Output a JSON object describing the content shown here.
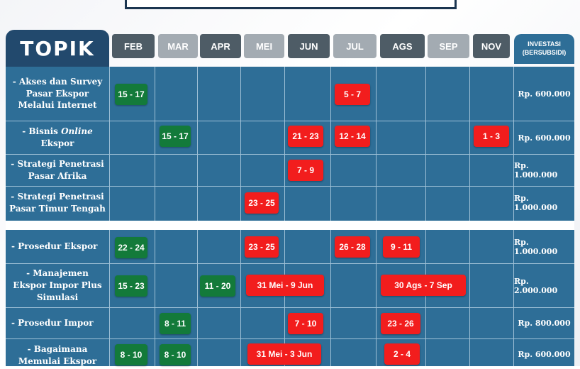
{
  "header": {
    "topik_label": "TOPIK",
    "investasi_line1": "INVESTASI",
    "investasi_line2": "(BERSUBSIDI)",
    "months": [
      {
        "label": "FEB",
        "color": "#4e5c66"
      },
      {
        "label": "MAR",
        "color": "#a3abb2"
      },
      {
        "label": "APR",
        "color": "#4e5c66"
      },
      {
        "label": "MEI",
        "color": "#a3abb2"
      },
      {
        "label": "JUN",
        "color": "#4e5c66"
      },
      {
        "label": "JUL",
        "color": "#a3abb2"
      },
      {
        "label": "AGS",
        "color": "#4e5c66"
      },
      {
        "label": "SEP",
        "color": "#a3abb2"
      },
      {
        "label": "NOV",
        "color": "#4e5c66"
      }
    ]
  },
  "colors": {
    "grid": "#2e6e97",
    "topik": "#22496d",
    "green": "#137a3a",
    "red": "#f21d1d"
  },
  "rows": [
    {
      "topic_lines": [
        "- Akses dan Survey",
        "Pasar Ekspor",
        "Melalui Internet"
      ],
      "price": "Rp. 600.000",
      "dates": [
        {
          "text": "15 - 17",
          "color": "green"
        },
        {
          "text": "5 - 7",
          "color": "red"
        }
      ]
    },
    {
      "topic_prefix": "- Bisnis",
      "topic_em": "Online",
      "topic_lines": [
        "Ekspor"
      ],
      "price": "Rp. 600.000",
      "dates": [
        {
          "text": "15 - 17",
          "color": "green"
        },
        {
          "text": "21 - 23",
          "color": "red"
        },
        {
          "text": "12 - 14",
          "color": "red"
        },
        {
          "text": "1 - 3",
          "color": "red"
        }
      ]
    },
    {
      "topic_lines": [
        "- Strategi Penetrasi",
        "Pasar Afrika"
      ],
      "price": "Rp. 1.000.000",
      "dates": [
        {
          "text": "7 - 9",
          "color": "red"
        }
      ]
    },
    {
      "topic_lines": [
        "- Strategi Penetrasi",
        "Pasar Timur Tengah"
      ],
      "price": "Rp. 1.000.000",
      "dates": [
        {
          "text": "23 - 25",
          "color": "red"
        }
      ]
    },
    {
      "topic_lines": [
        "- Prosedur Ekspor"
      ],
      "price": "Rp. 1.000.000",
      "dates": [
        {
          "text": "22 - 24",
          "color": "green"
        },
        {
          "text": "23 - 25",
          "color": "red"
        },
        {
          "text": "26 - 28",
          "color": "red"
        },
        {
          "text": "9 - 11",
          "color": "red"
        }
      ]
    },
    {
      "topic_lines": [
        "- Manajemen",
        "Ekspor Impor Plus",
        "Simulasi"
      ],
      "price": "Rp. 2.000.000",
      "dates": [
        {
          "text": "15 - 23",
          "color": "green"
        },
        {
          "text": "11 - 20",
          "color": "green"
        },
        {
          "text": "31 Mei - 9 Jun",
          "color": "red"
        },
        {
          "text": "30 Ags - 7 Sep",
          "color": "red"
        }
      ]
    },
    {
      "topic_lines": [
        "- Prosedur Impor"
      ],
      "price": "Rp. 800.000",
      "dates": [
        {
          "text": "8 - 11",
          "color": "green"
        },
        {
          "text": "7 - 10",
          "color": "red"
        },
        {
          "text": "23 - 26",
          "color": "red"
        }
      ]
    },
    {
      "topic_lines": [
        "- Bagaimana",
        "Memulai Ekspor"
      ],
      "price": "Rp. 600.000",
      "dates": [
        {
          "text": "8 - 10",
          "color": "green"
        },
        {
          "text": "8 - 10",
          "color": "green"
        },
        {
          "text": "31 Mei - 3 Jun",
          "color": "red"
        },
        {
          "text": "2 - 4",
          "color": "red"
        }
      ]
    }
  ]
}
